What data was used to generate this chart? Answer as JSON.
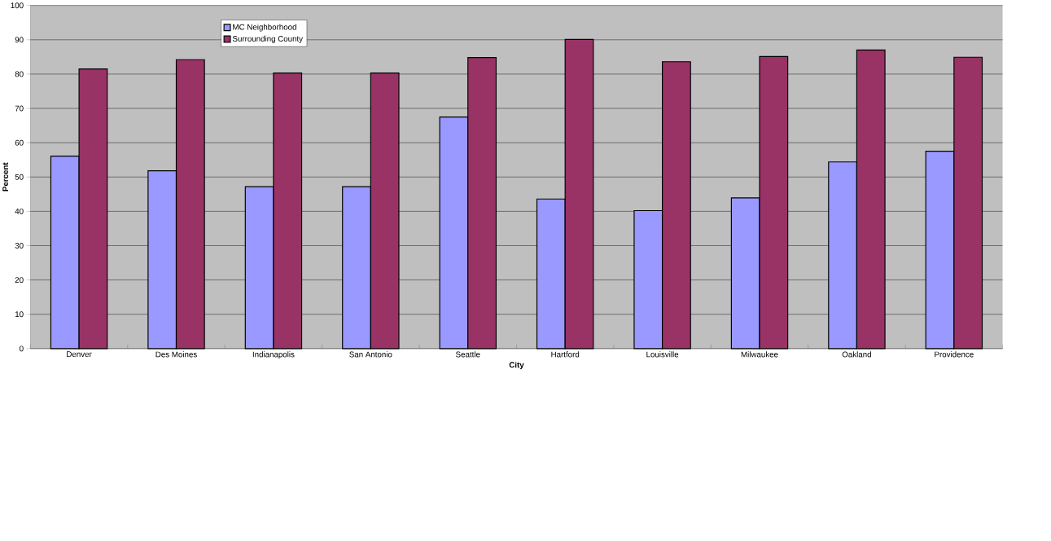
{
  "chart_data": {
    "type": "bar",
    "xlabel": "City",
    "ylabel": "Percent",
    "categories": [
      "Denver",
      "Des Moines",
      "Indianapolis",
      "San Antonio",
      "Seattle",
      "Hartford",
      "Louisville",
      "Milwaukee",
      "Oakland",
      "Providence"
    ],
    "series": [
      {
        "name": "MC Neighborhood",
        "color": "#9999ff",
        "values": [
          56.1,
          51.8,
          47.2,
          47.2,
          67.5,
          43.6,
          40.2,
          43.9,
          54.4,
          57.5
        ]
      },
      {
        "name": "Surrounding County",
        "color": "#993366",
        "values": [
          81.5,
          84.2,
          80.3,
          80.3,
          84.8,
          90.1,
          83.6,
          85.1,
          87.0,
          84.9
        ]
      }
    ],
    "ylim": [
      0,
      100
    ],
    "yticks": [
      0,
      10,
      20,
      30,
      40,
      50,
      60,
      70,
      80,
      90,
      100
    ],
    "grid": "y",
    "legend": "top left"
  }
}
